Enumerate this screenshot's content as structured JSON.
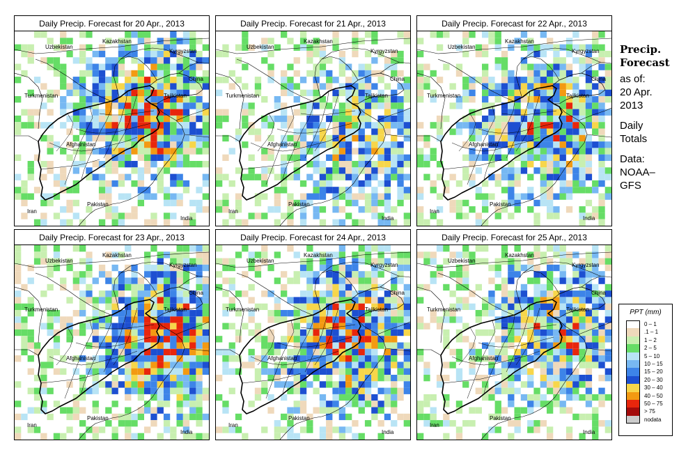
{
  "panels": [
    {
      "title": "Daily Precip. Forecast for  20 Apr., 2013",
      "seed": 11,
      "intensity": 1.0
    },
    {
      "title": "Daily Precip. Forecast for  21 Apr., 2013",
      "seed": 23,
      "intensity": 0.7
    },
    {
      "title": "Daily Precip. Forecast for  22 Apr., 2013",
      "seed": 37,
      "intensity": 0.9
    },
    {
      "title": "Daily Precip. Forecast for  23 Apr., 2013",
      "seed": 41,
      "intensity": 1.1
    },
    {
      "title": "Daily Precip. Forecast for  24 Apr., 2013",
      "seed": 53,
      "intensity": 1.0
    },
    {
      "title": "Daily Precip. Forecast for  25 Apr., 2013",
      "seed": 67,
      "intensity": 0.85
    }
  ],
  "map_labels": {
    "kazakhstan": "Kazakhstan",
    "uzbekistan": "Uzbekistan",
    "kyrgyzstan": "Kyrgyzstan",
    "china": "China",
    "turkmenistan": "Turkmenistan",
    "tajikistan": "Tajikistan",
    "afghanistan": "Afghanistan",
    "iran": "Iran",
    "pakistan": "Pakistan",
    "india": "India"
  },
  "side": {
    "title_line1": "Precip.",
    "title_line2": "Forecast",
    "asof_line1": "as of:",
    "asof_line2": "20 Apr.",
    "asof_line3": "2013",
    "totals_line1": "Daily",
    "totals_line2": "Totals",
    "data_line1": "Data:",
    "data_line2": "NOAA–",
    "data_line3": "GFS"
  },
  "legend": {
    "title": "PPT (mm)",
    "items": [
      {
        "label": "0 – 1",
        "color": "#ffffff"
      },
      {
        "label": ".1 – 1",
        "color": "#efd9bb"
      },
      {
        "label": "1 – 2",
        "color": "#c8efb0"
      },
      {
        "label": "2 – 5",
        "color": "#66dd66"
      },
      {
        "label": "5 – 10",
        "color": "#b8e4f5"
      },
      {
        "label": "10 – 15",
        "color": "#77b8f2"
      },
      {
        "label": "15 – 20",
        "color": "#3d84e8"
      },
      {
        "label": "20 – 30",
        "color": "#1d4fd1"
      },
      {
        "label": "30 – 40",
        "color": "#f7d64a"
      },
      {
        "label": "40 – 50",
        "color": "#f39a12"
      },
      {
        "label": "50 – 75",
        "color": "#e8260c"
      },
      {
        "label": "> 75",
        "color": "#a40b0b"
      },
      {
        "label": "nodata",
        "color": "#cccccc"
      }
    ]
  }
}
